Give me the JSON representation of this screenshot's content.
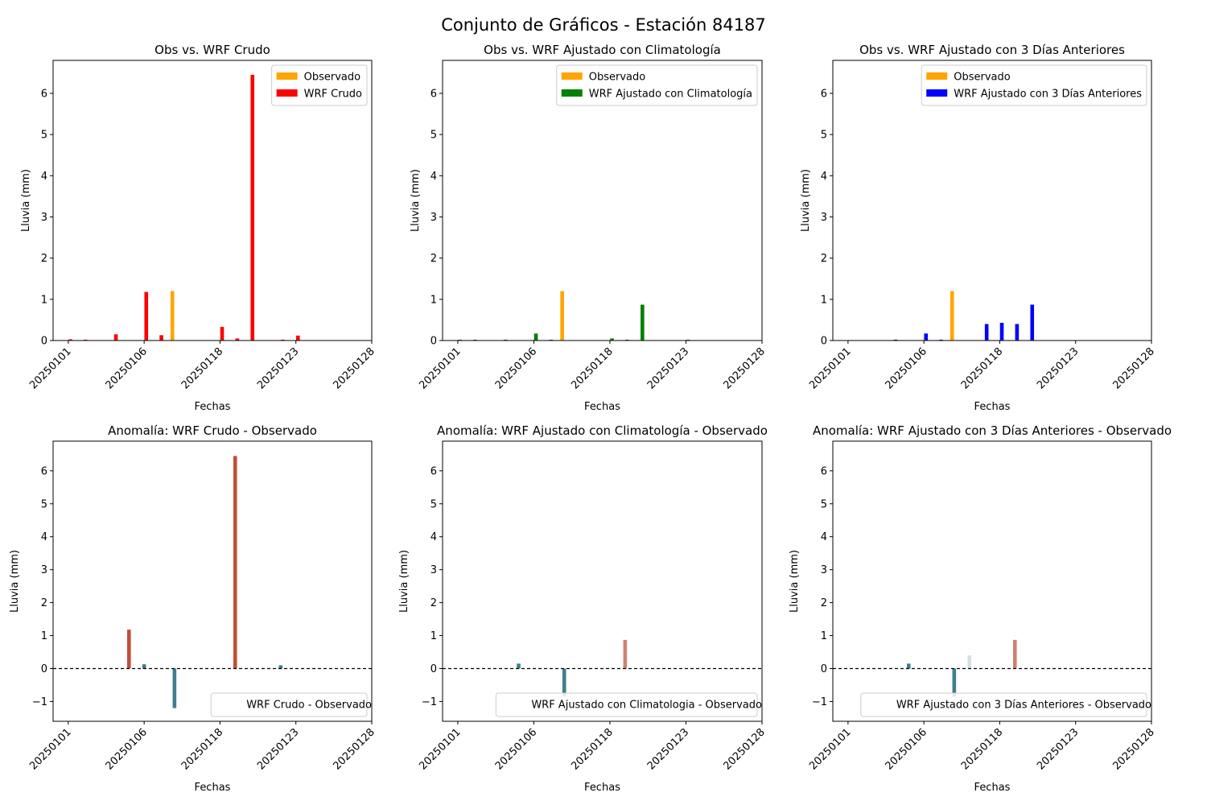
{
  "figure": {
    "title": "Conjunto de Gráficos - Estación 84187"
  },
  "colors": {
    "observado": "#FFA500",
    "wrf_crudo": "#FF0000",
    "wrf_clim": "#008000",
    "wrf_3d": "#0000FF",
    "anom_strong_pos": "#C44E37",
    "anom_pos": "#D08070",
    "anom_neg": "#3E7F8E",
    "anom_weak_pos": "#D5DEE0",
    "zero_line": "#000000"
  },
  "chart_data": [
    {
      "type": "bar",
      "title": "Obs vs. WRF Crudo",
      "xlabel": "Fechas",
      "ylabel": "Lluvia (mm)",
      "ylim": [
        0,
        6.8
      ],
      "yticks": [
        0,
        1,
        2,
        3,
        4,
        5,
        6
      ],
      "xticks": [
        "20250101",
        "20250106",
        "20250118",
        "20250123",
        "20250128"
      ],
      "legend": "top-right",
      "series": [
        {
          "name": "Observado",
          "color_key": "observado",
          "points": [
            {
              "x": 8,
              "y": 1.2
            }
          ]
        },
        {
          "name": "WRF Crudo",
          "color_key": "wrf_crudo",
          "points": [
            {
              "x": 1,
              "y": 0.03
            },
            {
              "x": 2,
              "y": 0.02
            },
            {
              "x": 4,
              "y": 0.15
            },
            {
              "x": 6,
              "y": 1.18
            },
            {
              "x": 7,
              "y": 0.13
            },
            {
              "x": 11,
              "y": 0.33
            },
            {
              "x": 12,
              "y": 0.05
            },
            {
              "x": 13,
              "y": 6.45
            },
            {
              "x": 15,
              "y": 0.02
            },
            {
              "x": 16,
              "y": 0.12
            }
          ]
        }
      ]
    },
    {
      "type": "bar",
      "title": "Obs vs. WRF Ajustado con Climatología",
      "xlabel": "Fechas",
      "ylabel": "Lluvia (mm)",
      "ylim": [
        0,
        6.8
      ],
      "yticks": [
        0,
        1,
        2,
        3,
        4,
        5,
        6
      ],
      "xticks": [
        "20250101",
        "20250106",
        "20250118",
        "20250123",
        "20250128"
      ],
      "legend": "top-right",
      "series": [
        {
          "name": "Observado",
          "color_key": "observado",
          "points": [
            {
              "x": 8,
              "y": 1.2
            }
          ]
        },
        {
          "name": "WRF Ajustado con Climatología",
          "color_key": "wrf_clim",
          "points": [
            {
              "x": 1,
              "y": 0.02
            },
            {
              "x": 2,
              "y": 0.02
            },
            {
              "x": 4,
              "y": 0.02
            },
            {
              "x": 6,
              "y": 0.17
            },
            {
              "x": 7,
              "y": 0.02
            },
            {
              "x": 11,
              "y": 0.05
            },
            {
              "x": 12,
              "y": 0.02
            },
            {
              "x": 13,
              "y": 0.87
            },
            {
              "x": 16,
              "y": 0.02
            }
          ]
        }
      ]
    },
    {
      "type": "bar",
      "title": "Obs vs. WRF Ajustado con 3 Días Anteriores",
      "xlabel": "Fechas",
      "ylabel": "Lluvia (mm)",
      "ylim": [
        0,
        6.8
      ],
      "yticks": [
        0,
        1,
        2,
        3,
        4,
        5,
        6
      ],
      "xticks": [
        "20250101",
        "20250106",
        "20250118",
        "20250123",
        "20250128"
      ],
      "legend": "top-right",
      "series": [
        {
          "name": "Observado",
          "color_key": "observado",
          "points": [
            {
              "x": 8,
              "y": 1.2
            }
          ]
        },
        {
          "name": "WRF Ajustado con 3 Días Anteriores",
          "color_key": "wrf_3d",
          "points": [
            {
              "x": 4,
              "y": 0.02
            },
            {
              "x": 6,
              "y": 0.17
            },
            {
              "x": 7,
              "y": 0.02
            },
            {
              "x": 10,
              "y": 0.4
            },
            {
              "x": 11,
              "y": 0.43
            },
            {
              "x": 12,
              "y": 0.4
            },
            {
              "x": 13,
              "y": 0.87
            }
          ]
        }
      ]
    },
    {
      "type": "bar",
      "title": "Anomalía: WRF Crudo - Observado",
      "xlabel": "Fechas",
      "ylabel": "Lluvia (mm)",
      "ylim": [
        -1.6,
        6.9
      ],
      "yticks": [
        -1,
        0,
        1,
        2,
        3,
        4,
        5,
        6
      ],
      "xticks": [
        "20250101",
        "20250106",
        "20250118",
        "20250123",
        "20250128"
      ],
      "legend": "lower-right",
      "zero_line": true,
      "series": [
        {
          "name": "WRF Crudo - Observado",
          "points": [
            {
              "x": 5,
              "y": 1.18,
              "color_key": "anom_strong_pos"
            },
            {
              "x": 6,
              "y": 0.13,
              "color_key": "anom_neg"
            },
            {
              "x": 8,
              "y": -1.2,
              "color_key": "anom_neg"
            },
            {
              "x": 12,
              "y": 6.45,
              "color_key": "anom_strong_pos"
            },
            {
              "x": 15,
              "y": 0.1,
              "color_key": "anom_neg"
            }
          ]
        }
      ]
    },
    {
      "type": "bar",
      "title": "Anomalía: WRF Ajustado con Climatología - Observado",
      "xlabel": "Fechas",
      "ylabel": "Lluvia (mm)",
      "ylim": [
        -1.6,
        6.9
      ],
      "yticks": [
        -1,
        0,
        1,
        2,
        3,
        4,
        5,
        6
      ],
      "xticks": [
        "20250101",
        "20250106",
        "20250118",
        "20250123",
        "20250128"
      ],
      "legend": "lower-right",
      "zero_line": true,
      "series": [
        {
          "name": "WRF Ajustado con Climatologia - Observado",
          "points": [
            {
              "x": 5,
              "y": 0.15,
              "color_key": "anom_neg"
            },
            {
              "x": 8,
              "y": -0.85,
              "color_key": "anom_neg"
            },
            {
              "x": 12,
              "y": 0.87,
              "color_key": "anom_pos"
            }
          ]
        }
      ]
    },
    {
      "type": "bar",
      "title": "Anomalía: WRF Ajustado con 3 Días Anteriores - Observado",
      "xlabel": "Fechas",
      "ylabel": "Lluvia (mm)",
      "ylim": [
        -1.6,
        6.9
      ],
      "yticks": [
        -1,
        0,
        1,
        2,
        3,
        4,
        5,
        6
      ],
      "xticks": [
        "20250101",
        "20250106",
        "20250118",
        "20250123",
        "20250128"
      ],
      "legend": "lower-right",
      "zero_line": true,
      "series": [
        {
          "name": "WRF Ajustado con 3 Días Anteriores - Observado",
          "points": [
            {
              "x": 5,
              "y": 0.15,
              "color_key": "anom_neg"
            },
            {
              "x": 8,
              "y": -0.85,
              "color_key": "anom_neg"
            },
            {
              "x": 9,
              "y": 0.4,
              "color_key": "anom_weak_pos"
            },
            {
              "x": 12,
              "y": 0.87,
              "color_key": "anom_pos"
            }
          ]
        }
      ]
    }
  ]
}
